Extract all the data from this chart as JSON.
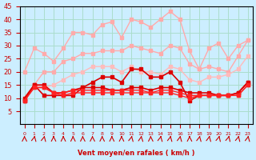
{
  "background_color": "#cceeff",
  "grid_color": "#aaddcc",
  "xlabel": "Vent moyen/en rafales ( km/h )",
  "xlabel_color": "#cc0000",
  "tick_color": "#cc0000",
  "x_hours": [
    0,
    1,
    2,
    3,
    4,
    5,
    6,
    7,
    8,
    9,
    10,
    11,
    12,
    13,
    14,
    15,
    16,
    17,
    18,
    19,
    20,
    21,
    22,
    23
  ],
  "ylim": [
    0,
    45
  ],
  "yticks": [
    5,
    10,
    15,
    20,
    25,
    30,
    35,
    40,
    45
  ],
  "series": [
    {
      "name": "rafales_high1",
      "color": "#ffaaaa",
      "lw": 1.0,
      "marker": "s",
      "ms": 2.5,
      "values": [
        20,
        29,
        27,
        24,
        29,
        35,
        35,
        34,
        38,
        39,
        33,
        40,
        39,
        37,
        40,
        43,
        40,
        28,
        21,
        29,
        31,
        25,
        30,
        32
      ]
    },
    {
      "name": "rafales_high2",
      "color": "#ffaaaa",
      "lw": 1.0,
      "marker": "s",
      "ms": 2.5,
      "values": [
        10,
        15,
        20,
        20,
        24,
        25,
        27,
        27,
        28,
        28,
        28,
        30,
        29,
        28,
        27,
        30,
        29,
        23,
        21,
        22,
        21,
        20,
        26,
        32
      ]
    },
    {
      "name": "rafales_mid1",
      "color": "#ffbbbb",
      "lw": 1.0,
      "marker": "s",
      "ms": 2.5,
      "values": [
        10,
        15,
        14,
        15,
        17,
        19,
        20,
        22,
        22,
        22,
        20,
        22,
        20,
        20,
        19,
        22,
        21,
        17,
        16,
        18,
        18,
        19,
        21,
        26
      ]
    },
    {
      "name": "wind_avg_dark1",
      "color": "#dd0000",
      "lw": 1.2,
      "marker": "s",
      "ms": 2.5,
      "values": [
        10,
        15,
        11,
        11,
        11,
        11,
        14,
        16,
        18,
        18,
        16,
        21,
        21,
        18,
        18,
        20,
        16,
        9,
        11,
        11,
        11,
        11,
        12,
        16
      ]
    },
    {
      "name": "wind_avg_dark2",
      "color": "#dd0000",
      "lw": 1.2,
      "marker": "s",
      "ms": 2.5,
      "values": [
        9,
        15,
        15,
        12,
        12,
        13,
        14,
        14,
        14,
        13,
        13,
        14,
        14,
        13,
        14,
        14,
        13,
        12,
        12,
        12,
        11,
        11,
        12,
        16
      ]
    },
    {
      "name": "wind_avg_dark3",
      "color": "#ff2222",
      "lw": 1.0,
      "marker": "s",
      "ms": 2.5,
      "values": [
        9,
        14,
        14,
        12,
        12,
        13,
        13,
        13,
        13,
        13,
        13,
        13,
        13,
        12,
        13,
        13,
        12,
        11,
        11,
        11,
        11,
        11,
        11,
        15
      ]
    },
    {
      "name": "wind_avg_dark4",
      "color": "#ff2222",
      "lw": 1.0,
      "marker": "s",
      "ms": 2.5,
      "values": [
        9,
        14,
        14,
        12,
        11,
        12,
        12,
        12,
        12,
        12,
        12,
        12,
        12,
        12,
        12,
        12,
        11,
        10,
        11,
        11,
        11,
        11,
        11,
        15
      ]
    }
  ],
  "wind_arrows": {
    "angles": [
      0,
      45,
      50,
      0,
      0,
      0,
      0,
      0,
      0,
      0,
      0,
      45,
      30,
      0,
      45,
      45,
      45,
      0,
      45,
      45,
      60,
      60,
      55,
      45
    ],
    "color": "#cc0000"
  }
}
